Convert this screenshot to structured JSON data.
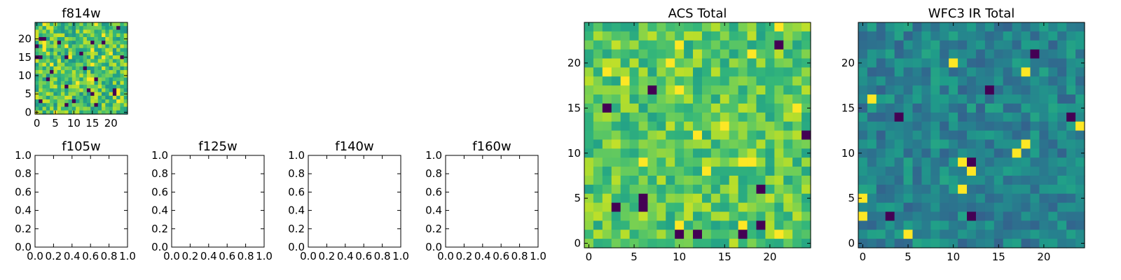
{
  "figure": {
    "background": "#ffffff",
    "colormap": "viridis"
  },
  "chart_data": [
    {
      "id": "f814w",
      "type": "heatmap",
      "title": "f814w",
      "grid_size": 25,
      "xlim": [
        -0.5,
        24.5
      ],
      "ylim": [
        -0.5,
        24.5
      ],
      "xticks": [
        0,
        5,
        10,
        15,
        20
      ],
      "yticks": [
        0,
        5,
        10,
        15,
        20
      ],
      "xtick_labels": [
        "0",
        "5",
        "10",
        "15",
        "20"
      ],
      "ytick_labels": [
        "0",
        "5",
        "10",
        "15",
        "20"
      ],
      "value_level": 0.72,
      "value_spread": 0.22,
      "seed": 814
    },
    {
      "id": "f105w",
      "type": "empty",
      "title": "f105w",
      "xlim": [
        0,
        1
      ],
      "ylim": [
        0,
        1
      ],
      "xtick_labels": [
        "0.0",
        "0.2",
        "0.4",
        "0.6",
        "0.8",
        "1.0"
      ],
      "ytick_labels": [
        "0.0",
        "0.2",
        "0.4",
        "0.6",
        "0.8",
        "1.0"
      ]
    },
    {
      "id": "f125w",
      "type": "empty",
      "title": "f125w",
      "xlim": [
        0,
        1
      ],
      "ylim": [
        0,
        1
      ],
      "xtick_labels": [
        "0.0",
        "0.2",
        "0.4",
        "0.6",
        "0.8",
        "1.0"
      ],
      "ytick_labels": [
        "0.0",
        "0.2",
        "0.4",
        "0.6",
        "0.8",
        "1.0"
      ]
    },
    {
      "id": "f140w",
      "type": "empty",
      "title": "f140w",
      "xlim": [
        0,
        1
      ],
      "ylim": [
        0,
        1
      ],
      "xtick_labels": [
        "0.0",
        "0.2",
        "0.4",
        "0.6",
        "0.8",
        "1.0"
      ],
      "ytick_labels": [
        "0.0",
        "0.2",
        "0.4",
        "0.6",
        "0.8",
        "1.0"
      ]
    },
    {
      "id": "f160w",
      "type": "empty",
      "title": "f160w",
      "xlim": [
        0,
        1
      ],
      "ylim": [
        0,
        1
      ],
      "xtick_labels": [
        "0.0",
        "0.2",
        "0.4",
        "0.6",
        "0.8",
        "1.0"
      ],
      "ytick_labels": [
        "0.0",
        "0.2",
        "0.4",
        "0.6",
        "0.8",
        "1.0"
      ]
    },
    {
      "id": "acs-total",
      "type": "heatmap",
      "title": "ACS Total",
      "grid_size": 25,
      "xlim": [
        -0.5,
        24.5
      ],
      "ylim": [
        -0.5,
        24.5
      ],
      "xticks": [
        0,
        5,
        10,
        15,
        20
      ],
      "yticks": [
        0,
        5,
        10,
        15,
        20
      ],
      "xtick_labels": [
        "0",
        "5",
        "10",
        "15",
        "20"
      ],
      "ytick_labels": [
        "0",
        "5",
        "10",
        "15",
        "20"
      ],
      "value_level": 0.74,
      "value_spread": 0.17,
      "seed": 2001
    },
    {
      "id": "wfc3-ir-total",
      "type": "heatmap",
      "title": "WFC3 IR Total",
      "grid_size": 25,
      "xlim": [
        -0.5,
        24.5
      ],
      "ylim": [
        -0.5,
        24.5
      ],
      "xticks": [
        0,
        5,
        10,
        15,
        20
      ],
      "yticks": [
        0,
        5,
        10,
        15,
        20
      ],
      "xtick_labels": [
        "0",
        "5",
        "10",
        "15",
        "20"
      ],
      "ytick_labels": [
        "0",
        "5",
        "10",
        "15",
        "20"
      ],
      "value_level": 0.45,
      "value_spread": 0.14,
      "seed": 3003
    }
  ]
}
